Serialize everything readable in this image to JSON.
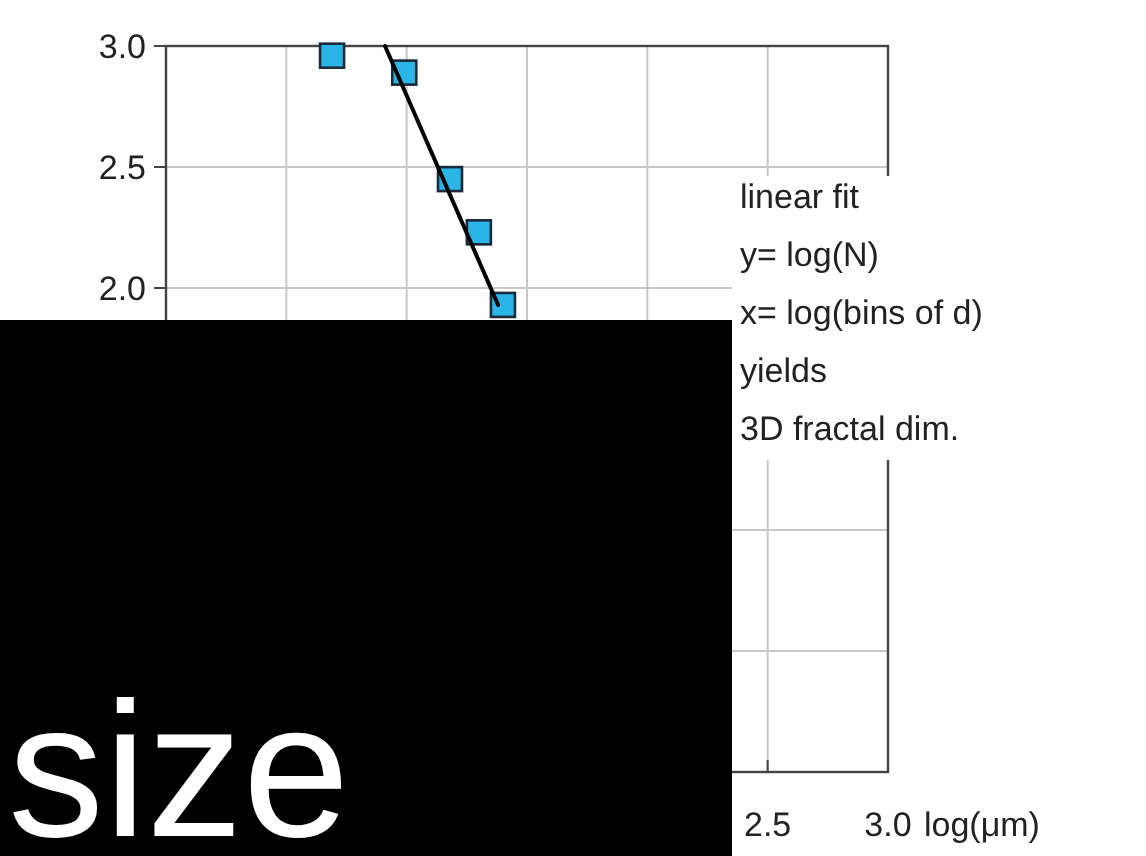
{
  "chart_data": {
    "type": "scatter",
    "xlabel": "log(μm)",
    "xlim": [
      0,
      3
    ],
    "ylim": [
      0,
      3
    ],
    "xticks": [
      {
        "value": 0,
        "label": null
      },
      {
        "value": 0.5,
        "label": null
      },
      {
        "value": 1.0,
        "label": null
      },
      {
        "value": 1.5,
        "label": null
      },
      {
        "value": 2.0,
        "label": null
      },
      {
        "value": 2.5,
        "label": "2.5"
      },
      {
        "value": 3.0,
        "label": "3.0"
      }
    ],
    "yticks": [
      {
        "value": 0,
        "label": null
      },
      {
        "value": 0.5,
        "label": null
      },
      {
        "value": 1.0,
        "label": null
      },
      {
        "value": 1.5,
        "label": null
      },
      {
        "value": 2.0,
        "label": "2.0"
      },
      {
        "value": 2.5,
        "label": "2.5"
      },
      {
        "value": 3.0,
        "label": "3.0"
      }
    ],
    "grid": true,
    "series": [
      {
        "marker": "square",
        "color": "#2bb5e6",
        "x": [
          0.69,
          0.99,
          1.18,
          1.3,
          1.4
        ],
        "values": [
          2.96,
          2.89,
          2.45,
          2.23,
          1.93
        ]
      },
      {
        "type": "line",
        "marker": "none",
        "color": "#000000",
        "x": [
          0.91,
          1.38
        ],
        "values": [
          3.0,
          1.93
        ]
      }
    ],
    "annotations": [
      "linear fit\ny= log(N)\nx= log(bins of d)\nyields\n3D fractal dim.",
      "size"
    ]
  }
}
